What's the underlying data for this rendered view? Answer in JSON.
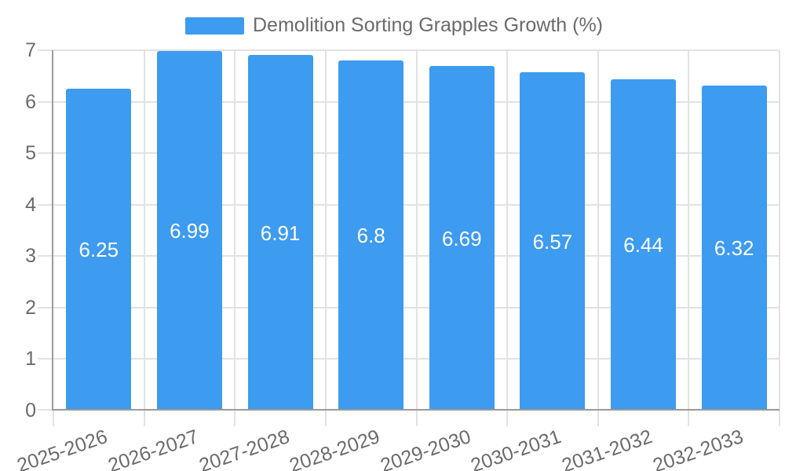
{
  "chart_data": {
    "type": "bar",
    "title": "Demolition Sorting Grapples Growth (%)",
    "categories": [
      "2025-2026",
      "2026-2027",
      "2027-2028",
      "2028-2029",
      "2029-2030",
      "2030-2031",
      "2031-2032",
      "2032-2033"
    ],
    "series": [
      {
        "name": "Demolition Sorting Grapples Growth (%)",
        "values": [
          6.25,
          6.99,
          6.91,
          6.8,
          6.69,
          6.57,
          6.44,
          6.32
        ]
      }
    ],
    "value_labels": [
      "6.25",
      "6.99",
      "6.91",
      "6.8",
      "6.69",
      "6.57",
      "6.44",
      "6.32"
    ],
    "xlabel": "",
    "ylabel": "",
    "ylim": [
      0,
      7
    ],
    "yticks": [
      0,
      1,
      2,
      3,
      4,
      5,
      6,
      7
    ],
    "ytick_labels": [
      "0",
      "1",
      "2",
      "3",
      "4",
      "5",
      "6",
      "7"
    ],
    "grid": true,
    "legend_position": "top",
    "x_label_rotation_deg": -19
  },
  "legend": {
    "label": "Demolition Sorting Grapples Growth (%)"
  },
  "colors": {
    "bar": "#3d9bf0",
    "bar_label_text": "#ffffff",
    "axis_line": "#9a9a9a",
    "gridline": "#e2e2e2",
    "tick_text": "#6b6b6b",
    "legend_text": "#6b6b6b",
    "background": "#ffffff"
  }
}
